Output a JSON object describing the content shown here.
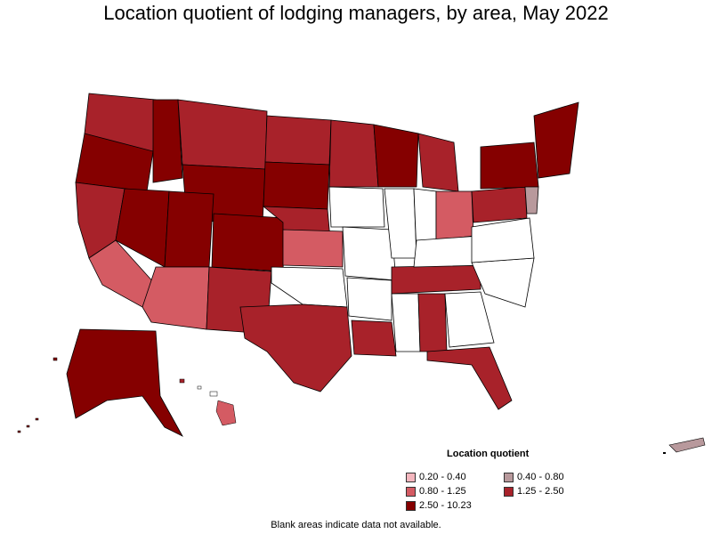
{
  "title": "Location quotient of lodging managers, by area, May 2022",
  "legend": {
    "title": "Location quotient",
    "items": [
      {
        "label": "0.20 - 0.40",
        "color": "#f4b6be"
      },
      {
        "label": "0.40 - 0.80",
        "color": "#b8999c"
      },
      {
        "label": "0.80 - 1.25",
        "color": "#d45b63"
      },
      {
        "label": "1.25 - 2.50",
        "color": "#a8222a"
      },
      {
        "label": "2.50 - 10.23",
        "color": "#850000"
      }
    ]
  },
  "note": "Blank areas indicate data not available.",
  "colors": {
    "no_data": "#ffffff",
    "border": "#000000"
  }
}
